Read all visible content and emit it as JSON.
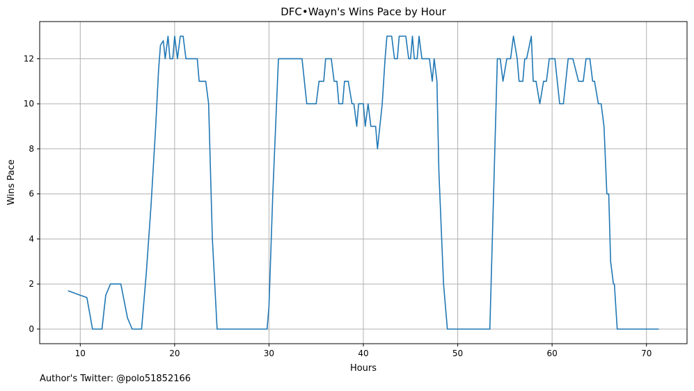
{
  "footer": "Author's Twitter: @polo51852166",
  "chart_data": {
    "type": "line",
    "title": "DFC•Wayn's Wins Pace by Hour",
    "xlabel": "Hours",
    "ylabel": "Wins Pace",
    "xlim": [
      5.7,
      74.3
    ],
    "ylim": [
      -0.65,
      13.65
    ],
    "xticks": [
      10,
      20,
      30,
      40,
      50,
      60,
      70
    ],
    "yticks": [
      0,
      2,
      4,
      6,
      8,
      10,
      12
    ],
    "grid": true,
    "line_color": "#1f77b4",
    "series": [
      {
        "x": [
          8.7,
          10.0,
          10.7,
          11.3,
          12.3,
          12.7,
          13.2,
          14.3,
          15.0,
          15.5,
          16.5,
          17.0,
          17.5,
          18.0,
          18.3,
          18.5,
          18.8,
          19.0,
          19.3,
          19.5,
          19.8,
          20.0,
          20.3,
          20.6,
          20.9,
          21.2,
          21.5,
          22.0,
          22.4,
          22.6,
          23.0,
          23.3,
          23.6,
          24.0,
          24.5,
          25.0,
          29.8,
          30.0,
          30.4,
          30.8,
          31.0,
          33.5,
          34.0,
          34.2,
          35.0,
          35.3,
          35.8,
          36.0,
          36.6,
          36.9,
          37.2,
          37.4,
          37.8,
          38.0,
          38.4,
          38.8,
          39.0,
          39.3,
          39.5,
          40.0,
          40.2,
          40.5,
          40.8,
          41.3,
          41.5,
          42.0,
          42.3,
          42.5,
          43.0,
          43.3,
          43.6,
          43.8,
          44.1,
          44.5,
          44.8,
          45.0,
          45.2,
          45.4,
          45.7,
          45.9,
          46.2,
          46.6,
          47.0,
          47.3,
          47.5,
          47.8,
          48.0,
          48.5,
          48.9,
          53.4,
          53.8,
          54.2,
          54.5,
          54.8,
          55.2,
          55.6,
          55.9,
          56.3,
          56.5,
          56.9,
          57.1,
          57.3,
          57.8,
          58.0,
          58.3,
          58.7,
          59.1,
          59.4,
          59.7,
          60.0,
          60.3,
          60.8,
          61.2,
          61.7,
          62.2,
          62.8,
          63.3,
          63.6,
          64.0,
          64.3,
          64.5,
          64.9,
          65.2,
          65.5,
          65.8,
          66.0,
          66.2,
          66.5,
          66.6,
          66.9,
          67.1,
          71.3
        ],
        "y": [
          1.7,
          1.5,
          1.4,
          0.0,
          0.0,
          1.5,
          2.0,
          2.0,
          0.5,
          0.0,
          0.0,
          2.5,
          5.5,
          9.0,
          11.5,
          12.6,
          12.8,
          12.0,
          13.0,
          12.0,
          12.0,
          13.0,
          12.0,
          13.0,
          13.0,
          12.0,
          12.0,
          12.0,
          12.0,
          11.0,
          11.0,
          11.0,
          10.0,
          4.0,
          0.0,
          0.0,
          0.0,
          1.0,
          6.0,
          10.0,
          12.0,
          12.0,
          10.0,
          10.0,
          10.0,
          11.0,
          11.0,
          12.0,
          12.0,
          11.0,
          11.0,
          10.0,
          10.0,
          11.0,
          11.0,
          10.0,
          10.0,
          9.0,
          10.0,
          10.0,
          9.0,
          10.0,
          9.0,
          9.0,
          8.0,
          10.0,
          12.0,
          13.0,
          13.0,
          12.0,
          12.0,
          13.0,
          13.0,
          13.0,
          12.0,
          12.0,
          13.0,
          12.0,
          12.0,
          13.0,
          12.0,
          12.0,
          12.0,
          11.0,
          12.0,
          11.0,
          7.0,
          2.0,
          0.0,
          0.0,
          6.0,
          12.0,
          12.0,
          11.0,
          12.0,
          12.0,
          13.0,
          12.0,
          11.0,
          11.0,
          12.0,
          12.0,
          13.0,
          11.0,
          11.0,
          10.0,
          11.0,
          11.0,
          12.0,
          12.0,
          12.0,
          10.0,
          10.0,
          12.0,
          12.0,
          11.0,
          11.0,
          12.0,
          12.0,
          11.0,
          11.0,
          10.0,
          10.0,
          9.0,
          6.0,
          6.0,
          3.0,
          2.0,
          2.0,
          0.0,
          0.0,
          0.0
        ]
      }
    ]
  }
}
